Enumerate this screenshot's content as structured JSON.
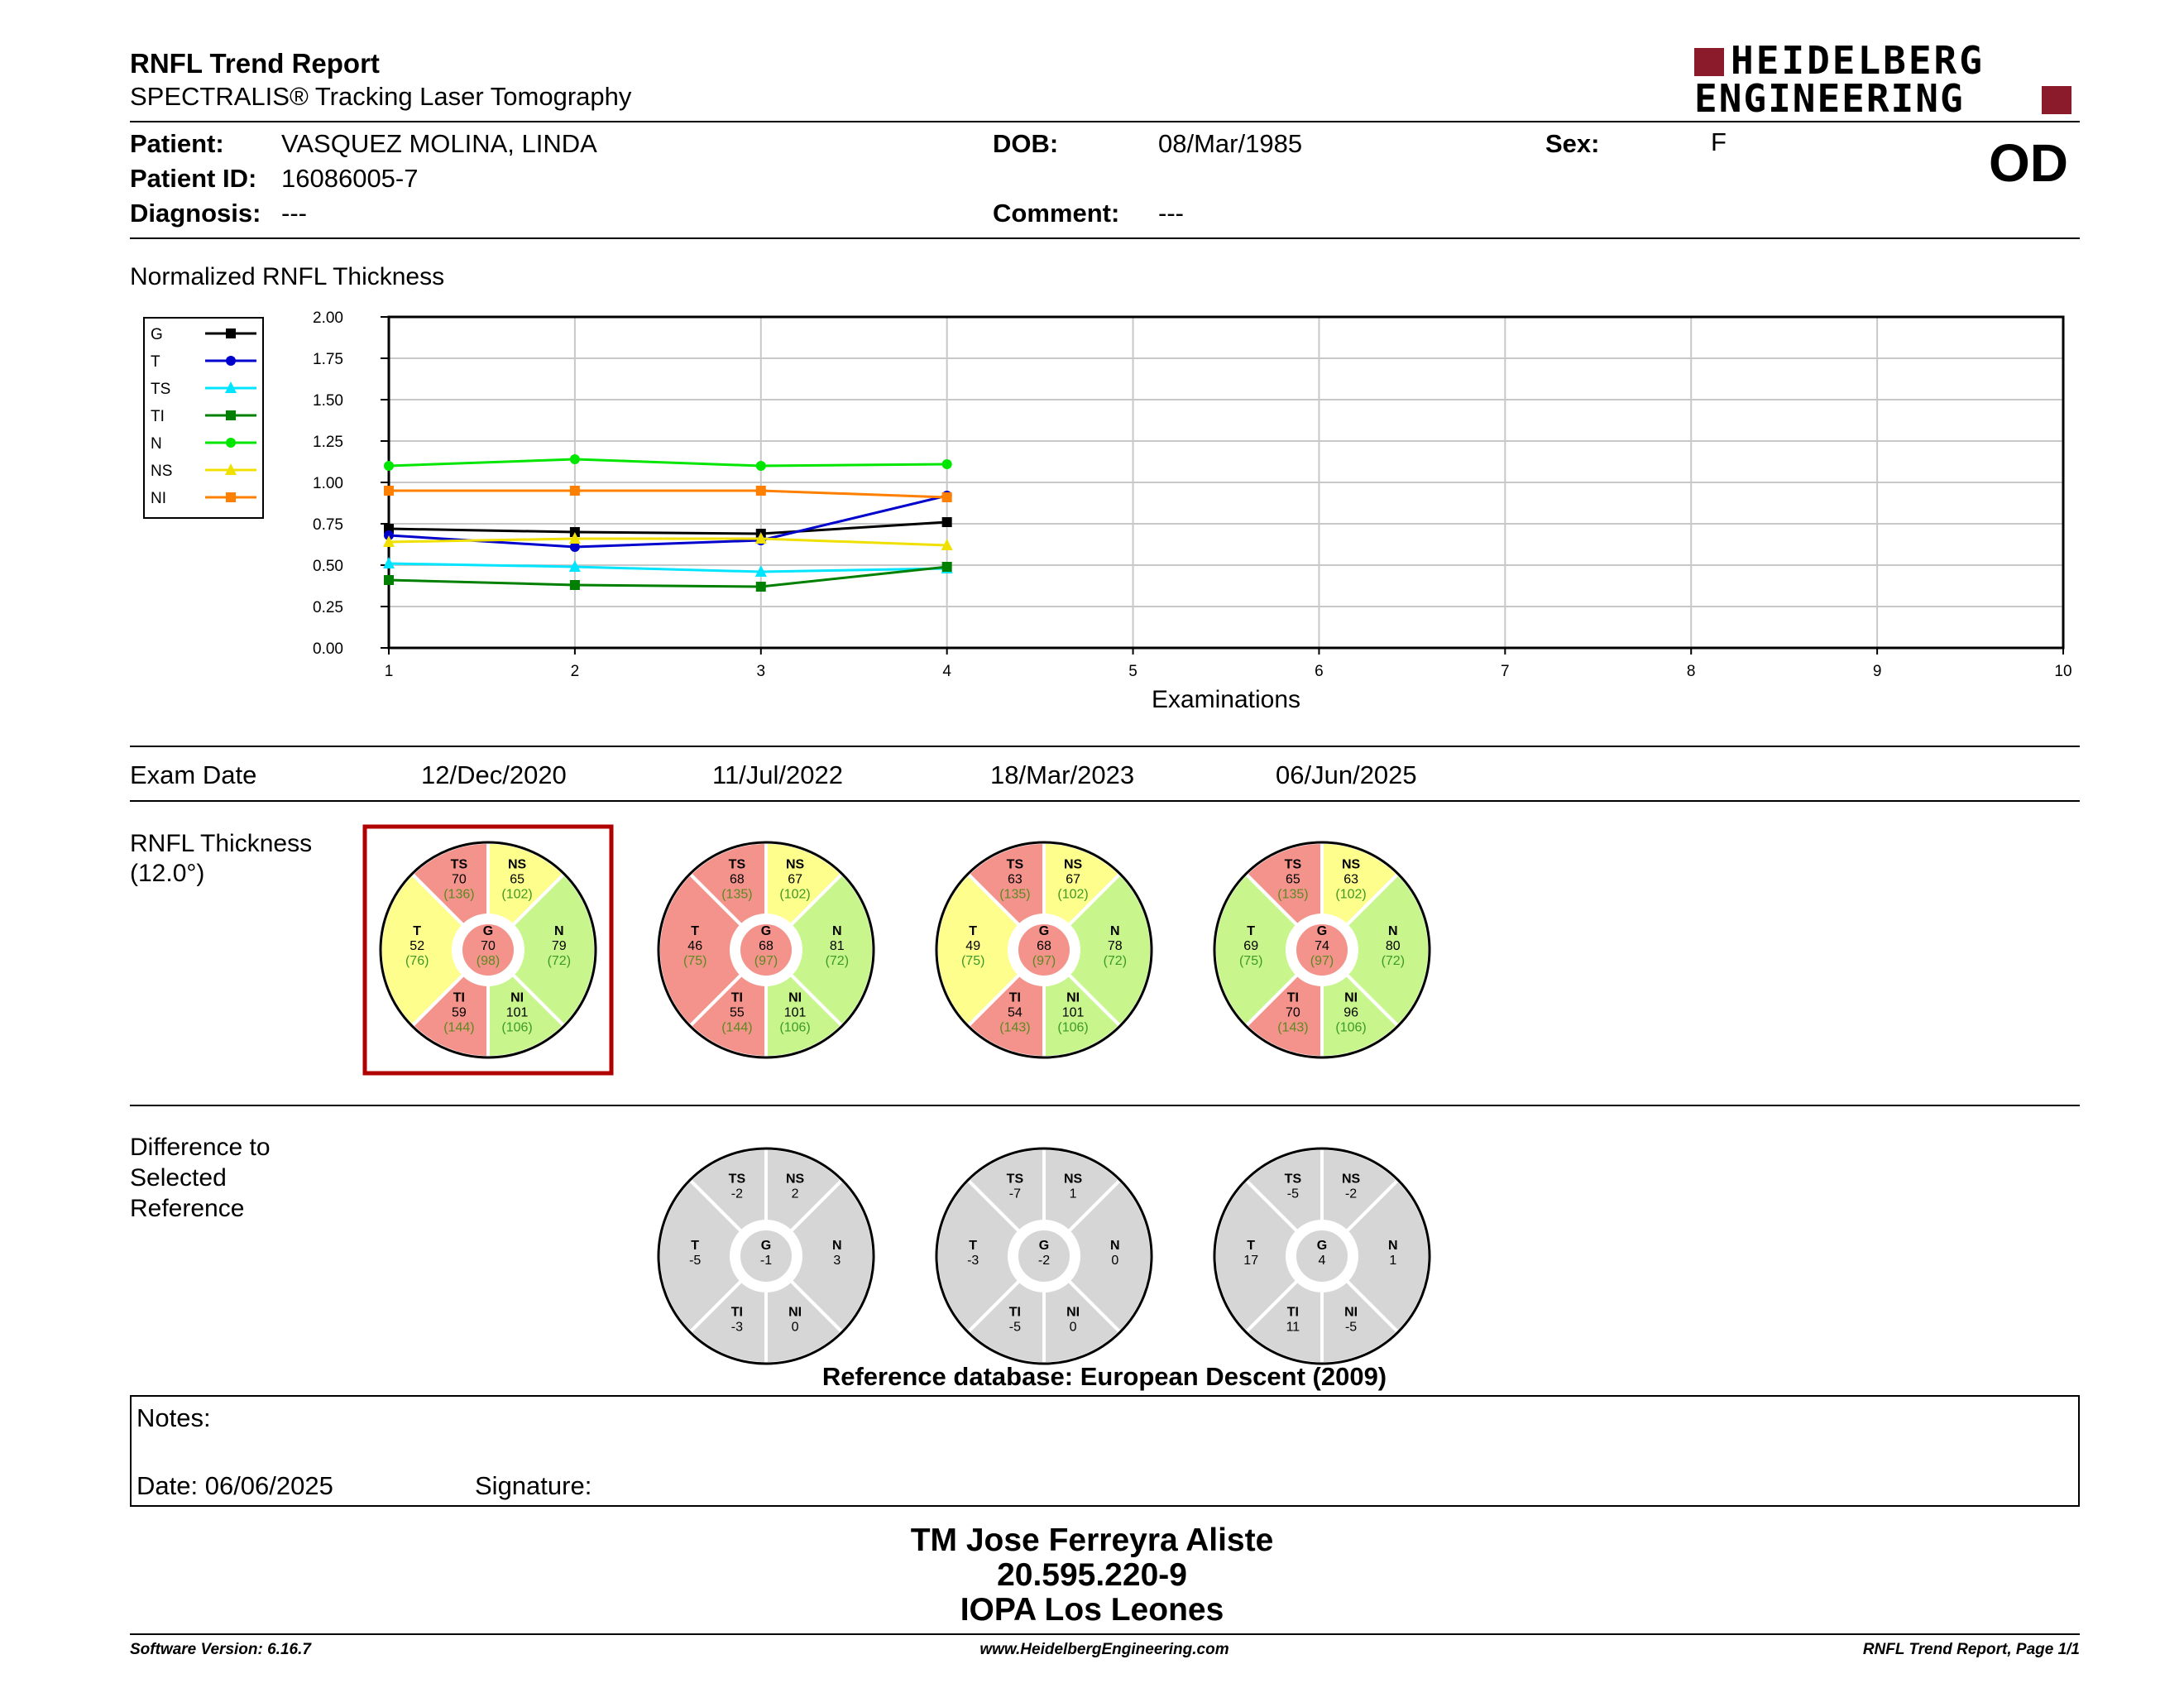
{
  "header": {
    "title": "RNFL Trend Report",
    "subtitle": "SPECTRALIS® Tracking Laser Tomography",
    "logo_line1": "HEIDELBERG",
    "logo_line2": "ENGINEERING",
    "eye": "OD",
    "brand_color": "#8b1a2b"
  },
  "patient": {
    "patient_label": "Patient:",
    "patient_value": "VASQUEZ MOLINA, LINDA",
    "id_label": "Patient ID:",
    "id_value": "16086005-7",
    "diagnosis_label": "Diagnosis:",
    "diagnosis_value": "---",
    "dob_label": "DOB:",
    "dob_value": "08/Mar/1985",
    "comment_label": "Comment:",
    "comment_value": "---",
    "sex_label": "Sex:",
    "sex_value": "F"
  },
  "chart_title": "Normalized RNFL Thickness",
  "chart_data": {
    "type": "line",
    "xlabel": "Examinations",
    "ylabel": "",
    "x": [
      1,
      2,
      3,
      4
    ],
    "xlim": [
      1,
      10
    ],
    "ylim": [
      0,
      2
    ],
    "x_ticks": [
      "1",
      "2",
      "3",
      "4",
      "5",
      "6",
      "7",
      "8",
      "9",
      "10"
    ],
    "y_ticks": [
      "0.00",
      "0.25",
      "0.50",
      "0.75",
      "1.00",
      "1.25",
      "1.50",
      "1.75",
      "2.00"
    ],
    "grid": true,
    "legend_placement": "left",
    "series": [
      {
        "name": "G",
        "color": "#000000",
        "marker": "square",
        "values": [
          0.72,
          0.7,
          0.69,
          0.76
        ]
      },
      {
        "name": "T",
        "color": "#0000cc",
        "marker": "circle",
        "values": [
          0.68,
          0.61,
          0.65,
          0.92
        ]
      },
      {
        "name": "TS",
        "color": "#00e5ff",
        "marker": "triangle",
        "values": [
          0.51,
          0.49,
          0.46,
          0.48
        ]
      },
      {
        "name": "TI",
        "color": "#008000",
        "marker": "square",
        "values": [
          0.41,
          0.38,
          0.37,
          0.49
        ]
      },
      {
        "name": "N",
        "color": "#00e600",
        "marker": "circle",
        "values": [
          1.1,
          1.14,
          1.1,
          1.11
        ]
      },
      {
        "name": "NS",
        "color": "#f0e000",
        "marker": "triangle",
        "values": [
          0.64,
          0.66,
          0.66,
          0.62
        ]
      },
      {
        "name": "NI",
        "color": "#ff8000",
        "marker": "square",
        "values": [
          0.95,
          0.95,
          0.95,
          0.91
        ]
      }
    ]
  },
  "exam_date_label": "Exam Date",
  "exam_dates": [
    "12/Dec/2020",
    "11/Jul/2022",
    "18/Mar/2023",
    "06/Jun/2025"
  ],
  "thickness_label_1": "RNFL Thickness",
  "thickness_label_2": "(12.0°)",
  "difference_label_1": "Difference to",
  "difference_label_2": "Selected",
  "difference_label_3": "Reference",
  "colors": {
    "red": "#f4938b",
    "yellow": "#fefe8c",
    "green": "#c8f58c",
    "gray": "#d6d6d6",
    "ref_green": "#3c9a28",
    "ref_red": "#c00000",
    "select_box": "#b00000"
  },
  "thickness_maps": [
    {
      "selected": true,
      "G": {
        "v": "70",
        "r": "(98)",
        "c": "red"
      },
      "TS": {
        "v": "70",
        "r": "(136)",
        "c": "red"
      },
      "NS": {
        "v": "65",
        "r": "(102)",
        "c": "yellow"
      },
      "T": {
        "v": "52",
        "r": "(76)",
        "c": "yellow"
      },
      "N": {
        "v": "79",
        "r": "(72)",
        "c": "green"
      },
      "TI": {
        "v": "59",
        "r": "(144)",
        "c": "red"
      },
      "NI": {
        "v": "101",
        "r": "(106)",
        "c": "green"
      }
    },
    {
      "selected": false,
      "G": {
        "v": "68",
        "r": "(97)",
        "c": "red"
      },
      "TS": {
        "v": "68",
        "r": "(135)",
        "c": "red"
      },
      "NS": {
        "v": "67",
        "r": "(102)",
        "c": "yellow"
      },
      "T": {
        "v": "46",
        "r": "(75)",
        "c": "red"
      },
      "N": {
        "v": "81",
        "r": "(72)",
        "c": "green"
      },
      "TI": {
        "v": "55",
        "r": "(144)",
        "c": "red"
      },
      "NI": {
        "v": "101",
        "r": "(106)",
        "c": "green"
      }
    },
    {
      "selected": false,
      "G": {
        "v": "68",
        "r": "(97)",
        "c": "red"
      },
      "TS": {
        "v": "63",
        "r": "(135)",
        "c": "red"
      },
      "NS": {
        "v": "67",
        "r": "(102)",
        "c": "yellow"
      },
      "T": {
        "v": "49",
        "r": "(75)",
        "c": "yellow"
      },
      "N": {
        "v": "78",
        "r": "(72)",
        "c": "green"
      },
      "TI": {
        "v": "54",
        "r": "(143)",
        "c": "red"
      },
      "NI": {
        "v": "101",
        "r": "(106)",
        "c": "green"
      }
    },
    {
      "selected": false,
      "G": {
        "v": "74",
        "r": "(97)",
        "c": "red"
      },
      "TS": {
        "v": "65",
        "r": "(135)",
        "c": "red"
      },
      "NS": {
        "v": "63",
        "r": "(102)",
        "c": "yellow"
      },
      "T": {
        "v": "69",
        "r": "(75)",
        "c": "green"
      },
      "N": {
        "v": "80",
        "r": "(72)",
        "c": "green"
      },
      "TI": {
        "v": "70",
        "r": "(143)",
        "c": "red"
      },
      "NI": {
        "v": "96",
        "r": "(106)",
        "c": "green"
      }
    }
  ],
  "difference_maps": [
    {
      "G": "-1",
      "TS": "-2",
      "NS": "2",
      "T": "-5",
      "N": "3",
      "TI": "-3",
      "NI": "0"
    },
    {
      "G": "-2",
      "TS": "-7",
      "NS": "1",
      "T": "-3",
      "N": "0",
      "TI": "-5",
      "NI": "0"
    },
    {
      "G": "4",
      "TS": "-5",
      "NS": "-2",
      "T": "17",
      "N": "1",
      "TI": "11",
      "NI": "-5"
    }
  ],
  "reference_db": "Reference database: European Descent (2009)",
  "notes": {
    "notes_label": "Notes:",
    "date_label": "Date: 06/06/2025",
    "signature_label": "Signature:"
  },
  "signature_block": {
    "line1": "TM Jose Ferreyra Aliste",
    "line2": "20.595.220-9",
    "line3": "IOPA Los Leones"
  },
  "footer": {
    "left": "Software Version: 6.16.7",
    "center": "www.HeidelbergEngineering.com",
    "right": "RNFL Trend Report, Page 1/1"
  }
}
